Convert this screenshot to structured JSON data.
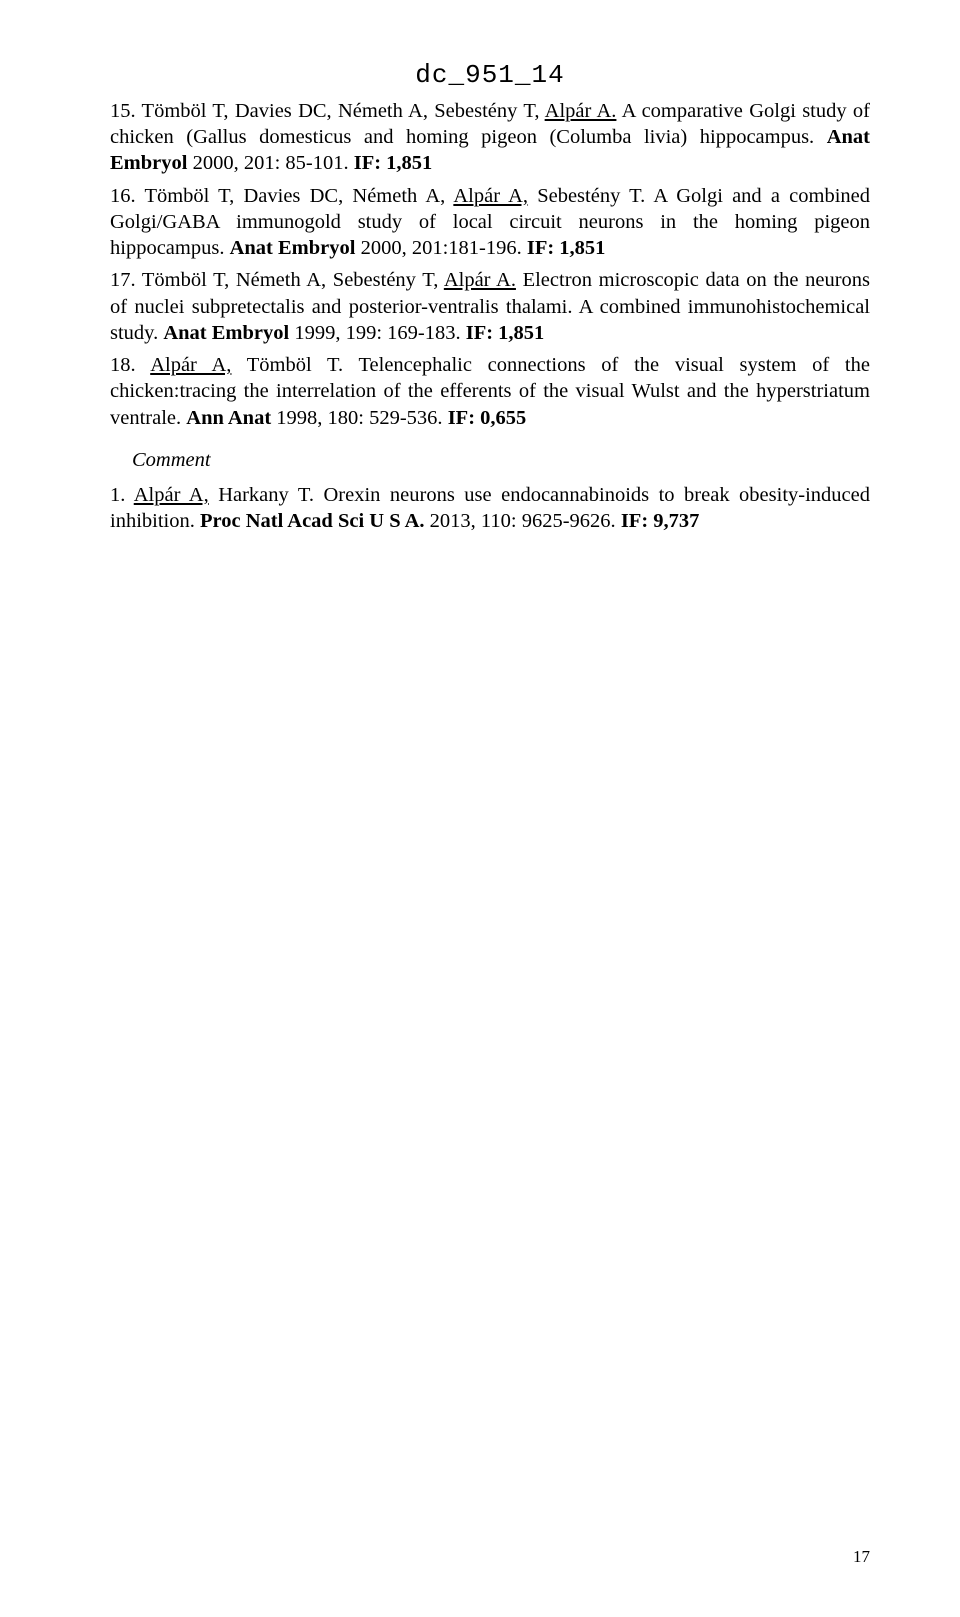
{
  "header": {
    "code": "dc_951_14"
  },
  "entries": [
    {
      "num": "15.",
      "authors_pre": " Tömböl T, Davies DC, Németh A, Sebestény T, ",
      "author_underlined": "Alpár A.",
      "title": "  A comparative Golgi study of chicken (Gallus domesticus and homing pigeon (Columba livia) hippocampus. ",
      "journal": "Anat Embryol",
      "cite": " 2000, 201: 85-101. ",
      "if": "IF: 1,851"
    },
    {
      "num": "16.",
      "authors_pre": " Tömböl T, Davies DC, Németh A, ",
      "author_underlined": "Alpár A,",
      "authors_post": " Sebestény T.",
      "title": " A Golgi and a combined Golgi/GABA immunogold study of local circuit neurons in the homing pigeon hippocampus. ",
      "journal": "Anat Embryol",
      "cite": " 2000, 201:181-196. ",
      "if": "IF: 1,851"
    },
    {
      "num": "17.",
      "authors_pre": " Tömböl T, Németh A, Sebestény T, ",
      "author_underlined": "Alpár A.",
      "title": " Electron microscopic data on the neurons of nuclei subpretectalis and posterior-ventralis thalami. A combined immunohistochemical study. ",
      "journal": "Anat Embryol",
      "cite": " 1999, 199: 169-183. ",
      "if": "IF: 1,851"
    },
    {
      "num": "18.",
      "authors_pre": " ",
      "author_underlined": "Alpár A,",
      "authors_post": " Tömböl T.",
      "title": " Telencephalic connections of the visual system of the chicken:tracing the interrelation of the efferents of the visual Wulst and the hyperstriatum ventrale. ",
      "journal": "Ann Anat",
      "cite": " 1998, 180: 529-536. ",
      "if": "IF: 0,655"
    }
  ],
  "section": {
    "heading": "Comment"
  },
  "comment_entries": [
    {
      "num": "1.",
      "authors_pre": " ",
      "author_underlined": "Alpár A,",
      "authors_post": " Harkany T.",
      "title": " Orexin neurons use endocannabinoids to break obesity-induced inhibition. ",
      "journal": "Proc Natl Acad Sci U S A.",
      "cite": " 2013, 110: 9625-9626. ",
      "if": "IF: 9,737"
    }
  ],
  "page_number": "17"
}
